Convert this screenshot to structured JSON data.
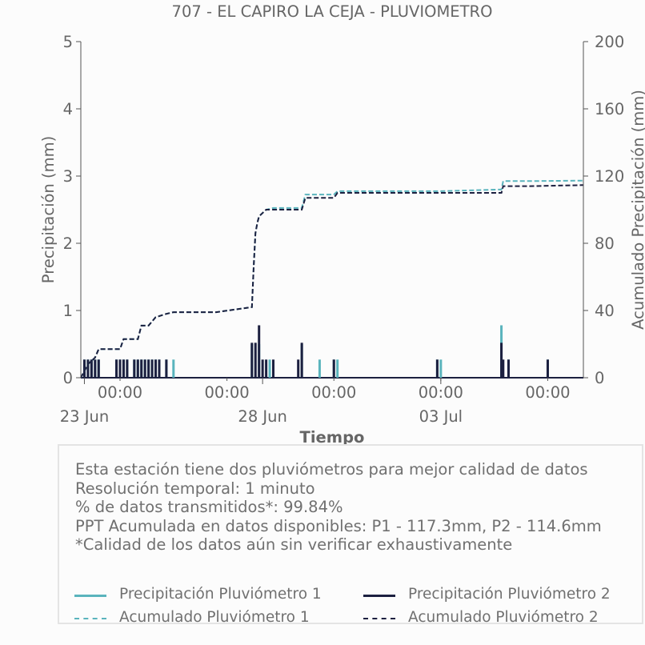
{
  "colors": {
    "p1": "#5ab4bd",
    "p2": "#1c2040",
    "text": "#666666",
    "axis": "#555555"
  },
  "chart_data": {
    "type": "bar",
    "title": "707 - EL CAPIRO LA CEJA - PLUVIOMETRO",
    "xlabel": "Tiempo",
    "ylabel": "Precipitación (mm)",
    "ylabel_right": "Acumulado Precipitación (mm)",
    "ylim": [
      0,
      5
    ],
    "ylim_right": [
      0,
      200
    ],
    "yticks": [
      "0",
      "1",
      "2",
      "3",
      "4",
      "5"
    ],
    "yticks_right": [
      "0",
      "40",
      "80",
      "120",
      "160",
      "200"
    ],
    "xlim_days": [
      22.9,
      37.0
    ],
    "xticks_minor": [
      {
        "label": "00:00",
        "day": 24
      },
      {
        "label": "00:00",
        "day": 27
      },
      {
        "label": "00:00",
        "day": 30
      },
      {
        "label": "00:00",
        "day": 33
      },
      {
        "label": "00:00",
        "day": 36
      }
    ],
    "xticks_major": [
      {
        "label": "23 Jun",
        "day": 23
      },
      {
        "label": "28 Jun",
        "day": 28
      },
      {
        "label": "03 Jul",
        "day": 33
      }
    ],
    "series": [
      {
        "name": "Precipitación Pluviómetro 1",
        "style": "bar",
        "x": [
          23.0,
          23.1,
          23.2,
          23.3,
          23.4,
          23.9,
          24.0,
          24.1,
          24.2,
          24.4,
          24.5,
          24.6,
          24.7,
          24.8,
          24.9,
          25.0,
          25.1,
          25.3,
          25.5,
          27.7,
          27.9,
          28.2,
          29.1,
          29.6,
          30.0,
          30.1,
          32.9,
          33.0,
          34.7,
          34.9,
          36.0
        ],
        "values": [
          0.27,
          0.27,
          0.27,
          0.27,
          0.27,
          0.27,
          0.27,
          0.27,
          0.27,
          0.27,
          0.27,
          0.27,
          0.27,
          0.27,
          0.27,
          0.27,
          0.27,
          0.27,
          0.27,
          0.5,
          0.5,
          0.27,
          0.5,
          0.27,
          0.27,
          0.27,
          0.27,
          0.27,
          0.78,
          0.27,
          0.27
        ]
      },
      {
        "name": "Precipitación Pluviómetro 2",
        "style": "bar",
        "x": [
          23.0,
          23.1,
          23.2,
          23.3,
          23.4,
          23.9,
          24.0,
          24.1,
          24.2,
          24.4,
          24.5,
          24.6,
          24.7,
          24.8,
          24.9,
          25.0,
          25.1,
          25.3,
          27.7,
          27.8,
          27.9,
          28.0,
          28.1,
          28.3,
          29.0,
          29.1,
          30.0,
          32.9,
          34.7,
          34.75,
          34.9,
          36.0
        ],
        "values": [
          0.27,
          0.27,
          0.27,
          0.27,
          0.27,
          0.27,
          0.27,
          0.27,
          0.27,
          0.27,
          0.27,
          0.27,
          0.27,
          0.27,
          0.27,
          0.27,
          0.27,
          0.27,
          0.52,
          0.52,
          0.78,
          0.27,
          0.27,
          0.27,
          0.27,
          0.52,
          0.27,
          0.27,
          0.52,
          0.27,
          0.27,
          0.27
        ]
      },
      {
        "name": "Acumulado Pluviómetro 1",
        "style": "dashed",
        "x": [
          22.9,
          23.1,
          23.3,
          23.4,
          24.0,
          24.1,
          24.5,
          24.6,
          24.8,
          25.0,
          25.3,
          25.5,
          26.7,
          27.7,
          27.75,
          27.8,
          27.85,
          27.9,
          28.0,
          28.1,
          28.3,
          29.1,
          29.2,
          30.0,
          30.1,
          33.0,
          34.7,
          34.75,
          35.5,
          37.0
        ],
        "values": [
          0,
          8,
          12,
          17,
          17,
          23,
          23,
          31,
          31,
          36,
          38,
          39,
          39,
          42,
          66,
          86,
          92,
          96,
          98,
          100,
          101,
          101,
          109,
          109,
          111,
          111,
          112,
          117,
          117,
          117.3
        ]
      },
      {
        "name": "Acumulado Pluviómetro 2",
        "style": "dashed",
        "x": [
          22.9,
          23.1,
          23.3,
          23.4,
          24.0,
          24.1,
          24.5,
          24.6,
          24.8,
          25.0,
          25.3,
          25.5,
          26.7,
          27.7,
          27.75,
          27.8,
          27.85,
          27.9,
          28.0,
          28.1,
          28.3,
          29.1,
          29.2,
          30.0,
          30.1,
          33.0,
          34.7,
          34.75,
          35.5,
          37.0
        ],
        "values": [
          0,
          8,
          12,
          17,
          17,
          23,
          23,
          31,
          31,
          36,
          38,
          39,
          39,
          42,
          66,
          86,
          92,
          96,
          98,
          100,
          100,
          100,
          107,
          107,
          110,
          110,
          110,
          114,
          114,
          114.6
        ]
      }
    ]
  },
  "info": {
    "lines": [
      "Esta estación tiene dos pluviómetros para mejor calidad de datos",
      "Resolución temporal: 1 minuto",
      "% de datos transmitidos*: 99.84%",
      "PPT Acumulada en datos disponibles: P1 - 117.3mm, P2 - 114.6mm",
      "*Calidad de los datos aún sin verificar exhaustivamente"
    ]
  },
  "legend": [
    {
      "label": "Precipitación Pluviómetro 1",
      "color": "#5ab4bd",
      "style": "solid"
    },
    {
      "label": "Precipitación Pluviómetro 2",
      "color": "#1c2040",
      "style": "solid"
    },
    {
      "label": "Acumulado Pluviómetro 1",
      "color": "#5ab4bd",
      "style": "dashed"
    },
    {
      "label": "Acumulado Pluviómetro 2",
      "color": "#1c2040",
      "style": "dashed"
    }
  ]
}
